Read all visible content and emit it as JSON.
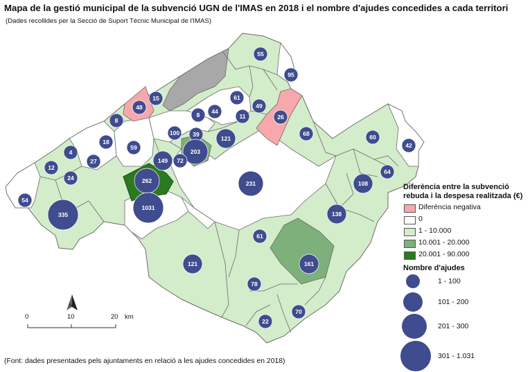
{
  "title": "Mapa de la gestió municipal de la subvenció UGN de l'IMAS en 2018 i el nombre d'ajudes concedides a cada territori",
  "subtitle": "(Dades recollides per la Secció de Suport Tècnic Municipal de l'IMAS)",
  "source": "(Font: dades presentades pels ajuntaments en relació a les ajudes concedides en 2018)",
  "colors": {
    "negative": "#f8a8ad",
    "zero": "#ffffff",
    "light": "#d3ecca",
    "medium": "#7db07a",
    "dark": "#2b7a1f",
    "nodata": "#a8a8a8",
    "bubble": "#3f4c8e",
    "border": "#6a6a6a"
  },
  "legend": {
    "difference_title_line1": "Diferència entre la subvenció",
    "difference_title_line2": "rebuda i la despesa realitzada (€)",
    "difference_items": [
      {
        "label": "Diferència negativa",
        "color_key": "negative"
      },
      {
        "label": "0",
        "color_key": "zero"
      },
      {
        "label": "1 - 10.000",
        "color_key": "light"
      },
      {
        "label": "10.001 - 20.000",
        "color_key": "medium"
      },
      {
        "label": "20.001 - 90.000",
        "color_key": "dark"
      }
    ],
    "aids_title": "Nombre d'ajudes",
    "aids_items": [
      {
        "label": "1 - 100"
      },
      {
        "label": "101 - 200"
      },
      {
        "label": "201 - 300"
      },
      {
        "label": "301 - 1.031"
      }
    ]
  },
  "scale_bar": {
    "labels": [
      "0",
      "10",
      "20"
    ],
    "unit": "km",
    "north_label": "N"
  },
  "bubbles": [
    "55",
    "95",
    "61",
    "15",
    "48",
    "8",
    "44",
    "49",
    "11",
    "26",
    "8",
    "100",
    "39",
    "68",
    "60",
    "42",
    "18",
    "59",
    "121",
    "4",
    "203",
    "27",
    "149",
    "72",
    "12",
    "24",
    "64",
    "262",
    "231",
    "108",
    "54",
    "1031",
    "335",
    "138",
    "61",
    "161",
    "121",
    "78",
    "70",
    "22"
  ]
}
